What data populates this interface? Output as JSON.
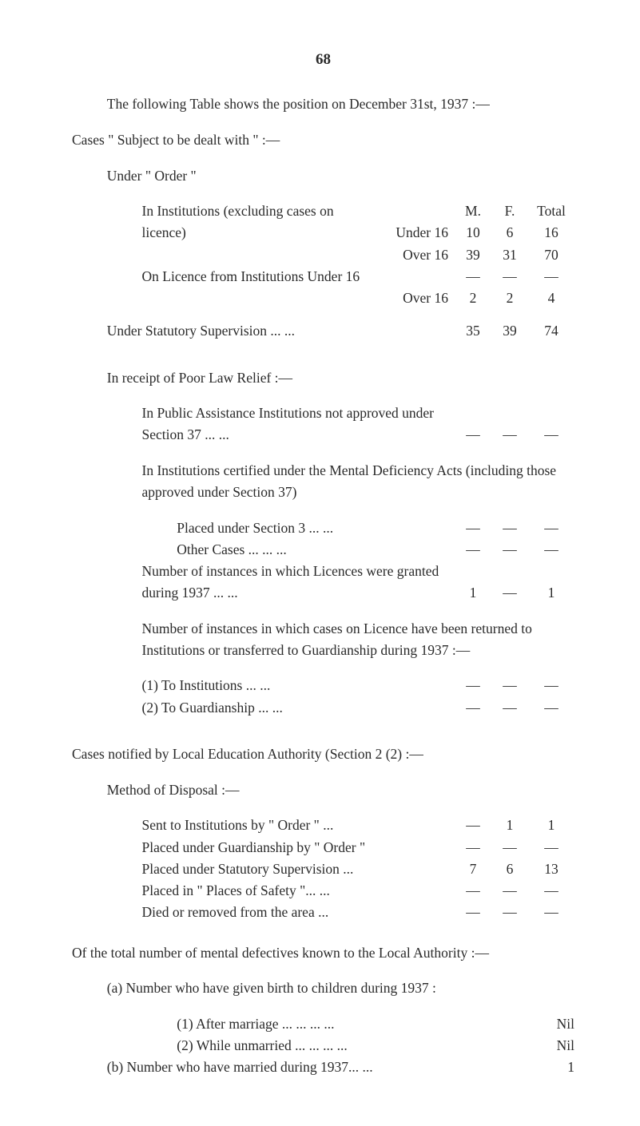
{
  "page_number": "68",
  "intro": "The following Table shows the position on December 31st, 1937 :—",
  "cases_heading": "Cases \" Subject to be dealt with \" :—",
  "under_order": "Under \" Order \"",
  "col_headers": {
    "m": "M.",
    "f": "F.",
    "total": "Total"
  },
  "rows": {
    "inst_excl": {
      "label": "In   Institutions   (excluding   cases   on",
      "m": "M.",
      "f": "F.",
      "total": "Total"
    },
    "licence": {
      "label": "licence)",
      "suffix": "Under 16",
      "m": "10",
      "f": "6",
      "total": "16"
    },
    "over16": {
      "label": "Over 16",
      "m": "39",
      "f": "31",
      "total": "70"
    },
    "onlic_u16": {
      "label": "On Licence from Institutions Under 16",
      "m": "—",
      "f": "—",
      "total": "—"
    },
    "onlic_o16": {
      "label": "Over 16",
      "m": "2",
      "f": "2",
      "total": "4"
    },
    "stat_sup": {
      "label": "Under Statutory Supervision      ...         ...",
      "m": "35",
      "f": "39",
      "total": "74"
    },
    "poor_law": {
      "label": "In receipt of Poor Law Relief :—"
    },
    "pub_assist": {
      "label": "In Public Assistance Institutions not approved under Section 37     ...            ...",
      "m": "—",
      "f": "—",
      "total": "—"
    },
    "cert_intro": {
      "label": "In Institutions certified under the Mental Deficiency Acts (including those approved under Section 37)"
    },
    "placed_s3": {
      "label": "Placed under Section 3       ...           ...",
      "m": "—",
      "f": "—",
      "total": "—"
    },
    "other_cases": {
      "label": "Other Cases            ...           ...           ...",
      "m": "—",
      "f": "—",
      "total": "—"
    },
    "num_lic": {
      "label": "Number of instances in which Licences were granted during 1937  ...          ...",
      "m": "1",
      "f": "—",
      "total": "1"
    },
    "num_ret": {
      "label": "Number of instances in which cases on Licence have been returned to Institutions or transferred to Guardianship during 1937 :—"
    },
    "to_inst": {
      "label": "(1) To Institutions               ...           ...",
      "m": "—",
      "f": "—",
      "total": "—"
    },
    "to_guard": {
      "label": "(2) To Guardianship            ...           ...",
      "m": "—",
      "f": "—",
      "total": "—"
    }
  },
  "cases_notified": "Cases notified by Local Education Authority (Section 2 (2) :—",
  "method_disposal": "Method of Disposal :—",
  "disposal": {
    "sent_inst": {
      "label": "Sent to Institutions by \" Order \"        ...",
      "m": "—",
      "f": "1",
      "total": "1"
    },
    "placed_g": {
      "label": "Placed under Guardianship by \" Order \"",
      "m": "—",
      "f": "—",
      "total": "—"
    },
    "placed_ss": {
      "label": "Placed under Statutory Supervision   ...",
      "m": "7",
      "f": "6",
      "total": "13"
    },
    "places_safe": {
      "label": "Placed in \" Places of Safety \"...         ...",
      "m": "—",
      "f": "—",
      "total": "—"
    },
    "died": {
      "label": "Died or removed from the area         ...",
      "m": "—",
      "f": "—",
      "total": "—"
    }
  },
  "total_known": "Of the total number of mental defectives known to the Local Authority :—",
  "born": {
    "a_label": "(a) Number who have given birth to children during 1937 :",
    "after_marriage": {
      "label": "(1) After marriage        ...            ...            ...          ...",
      "val": "Nil"
    },
    "while_unm": {
      "label": "(2) While  unmarried  ...            ...            ...          ...",
      "val": "Nil"
    },
    "b": {
      "label": "(b) Number who have married during 1937...             ...",
      "val": "1"
    }
  },
  "colors": {
    "text": "#2a2a2a",
    "background": "#ffffff"
  }
}
